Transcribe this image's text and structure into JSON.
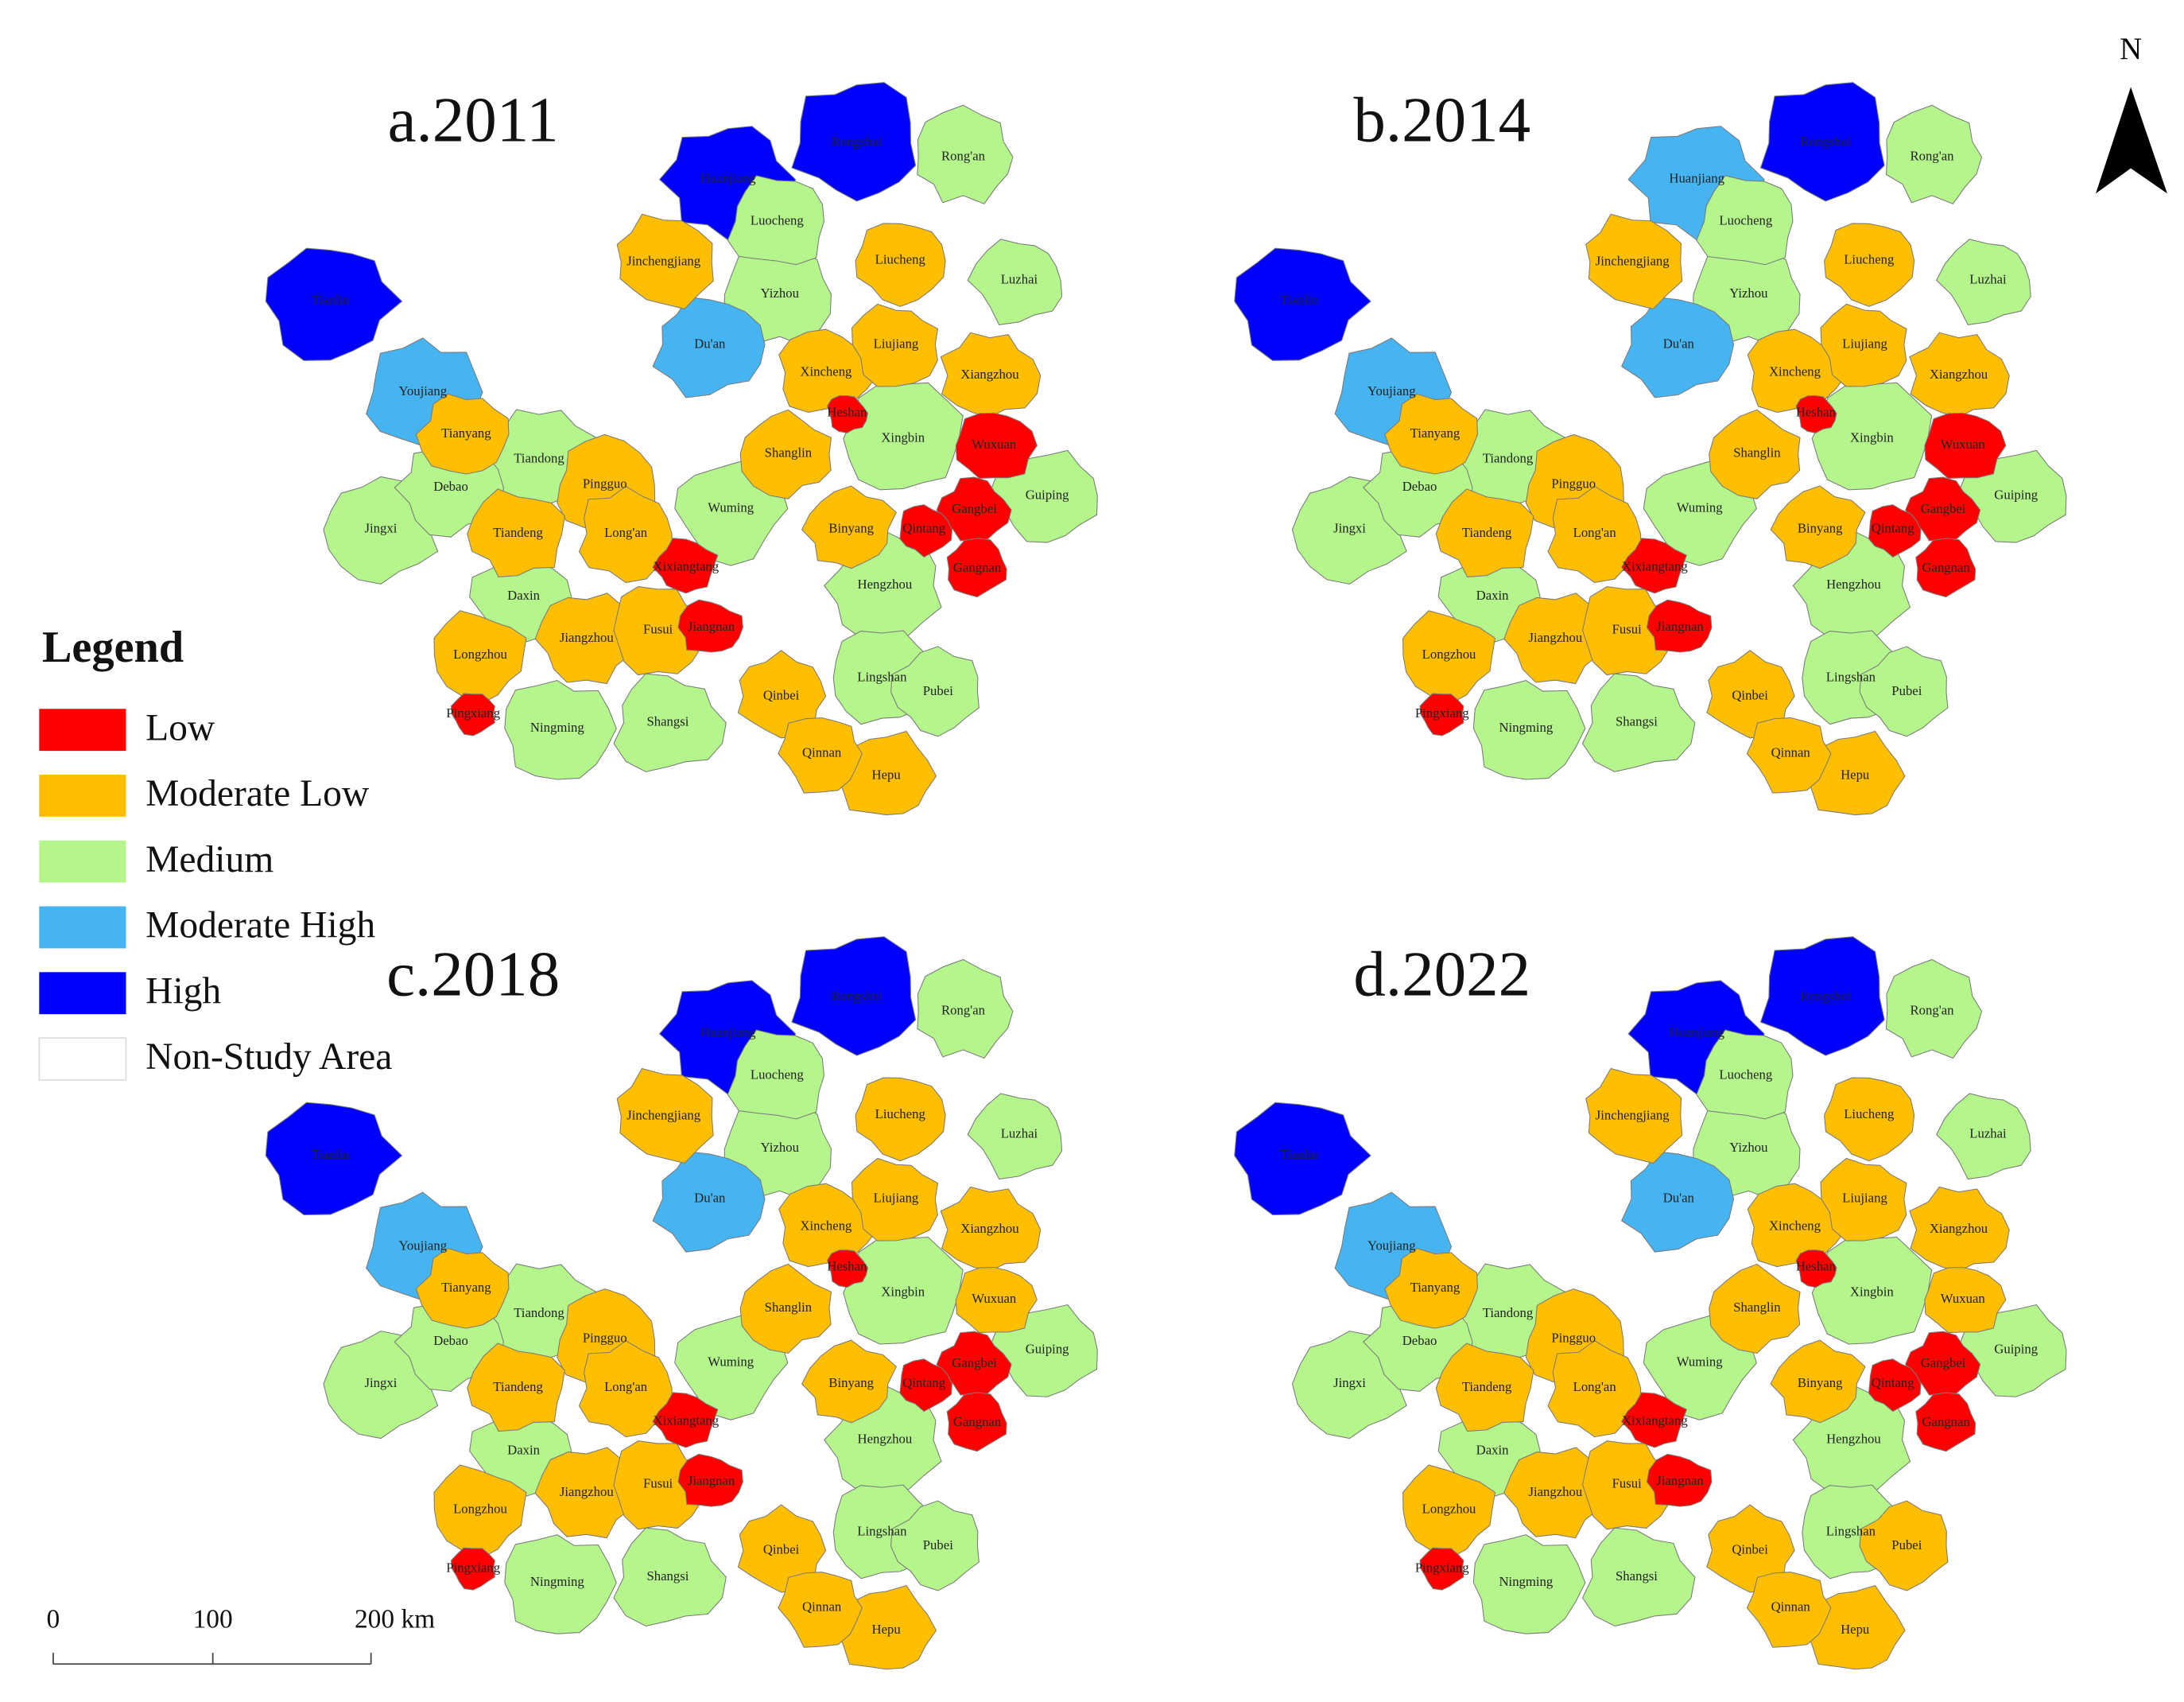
{
  "panels": [
    {
      "title": "a.2011"
    },
    {
      "title": "b.2014"
    },
    {
      "title": "c.2018"
    },
    {
      "title": "d.2022"
    }
  ],
  "legend": {
    "title": "Legend",
    "items": [
      {
        "label": "Low",
        "color": "#ff0000"
      },
      {
        "label": "Moderate Low",
        "color": "#ffbe00"
      },
      {
        "label": "Medium",
        "color": "#b4f58c"
      },
      {
        "label": "Moderate High",
        "color": "#46b4f0"
      },
      {
        "label": "High",
        "color": "#0000ff"
      },
      {
        "label": "Non-Study Area",
        "color": "#ffffff"
      }
    ]
  },
  "counties": [
    {
      "name": "Huanjiang",
      "classes": [
        "High",
        "Moderate High",
        "High",
        "High"
      ]
    },
    {
      "name": "Rongshui",
      "classes": [
        "High",
        "High",
        "High",
        "High"
      ]
    },
    {
      "name": "Rong'an",
      "classes": [
        "Medium",
        "Medium",
        "Medium",
        "Medium"
      ]
    },
    {
      "name": "Luocheng",
      "classes": [
        "Medium",
        "Medium",
        "Medium",
        "Medium"
      ]
    },
    {
      "name": "Jinchengjiang",
      "classes": [
        "Moderate Low",
        "Moderate Low",
        "Moderate Low",
        "Moderate Low"
      ]
    },
    {
      "name": "Liucheng",
      "classes": [
        "Moderate Low",
        "Moderate Low",
        "Moderate Low",
        "Moderate Low"
      ]
    },
    {
      "name": "Luzhai",
      "classes": [
        "Medium",
        "Medium",
        "Medium",
        "Medium"
      ]
    },
    {
      "name": "Yizhou",
      "classes": [
        "Medium",
        "Medium",
        "Medium",
        "Medium"
      ]
    },
    {
      "name": "Du'an",
      "classes": [
        "Moderate High",
        "Moderate High",
        "Moderate High",
        "Moderate High"
      ]
    },
    {
      "name": "Tianlin",
      "classes": [
        "High",
        "High",
        "High",
        "High"
      ]
    },
    {
      "name": "Youjiang",
      "classes": [
        "Moderate High",
        "Moderate High",
        "Moderate High",
        "Moderate High"
      ]
    },
    {
      "name": "Liujiang",
      "classes": [
        "Moderate Low",
        "Moderate Low",
        "Moderate Low",
        "Moderate Low"
      ]
    },
    {
      "name": "Xincheng",
      "classes": [
        "Moderate Low",
        "Moderate Low",
        "Moderate Low",
        "Moderate Low"
      ]
    },
    {
      "name": "Xiangzhou",
      "classes": [
        "Moderate Low",
        "Moderate Low",
        "Moderate Low",
        "Moderate Low"
      ]
    },
    {
      "name": "Xingbin",
      "classes": [
        "Medium",
        "Medium",
        "Medium",
        "Medium"
      ]
    },
    {
      "name": "Wuxuan",
      "classes": [
        "Low",
        "Low",
        "Moderate Low",
        "Moderate Low"
      ]
    },
    {
      "name": "Tianyang",
      "classes": [
        "Moderate Low",
        "Moderate Low",
        "Moderate Low",
        "Moderate Low"
      ]
    },
    {
      "name": "Tiandong",
      "classes": [
        "Medium",
        "Medium",
        "Medium",
        "Medium"
      ]
    },
    {
      "name": "Shanglin",
      "classes": [
        "Moderate Low",
        "Moderate Low",
        "Moderate Low",
        "Moderate Low"
      ]
    },
    {
      "name": "Debao",
      "classes": [
        "Medium",
        "Medium",
        "Medium",
        "Medium"
      ]
    },
    {
      "name": "Pingguo",
      "classes": [
        "Moderate Low",
        "Moderate Low",
        "Moderate Low",
        "Moderate Low"
      ]
    },
    {
      "name": "Wuming",
      "classes": [
        "Medium",
        "Medium",
        "Medium",
        "Medium"
      ]
    },
    {
      "name": "Guiping",
      "classes": [
        "Medium",
        "Medium",
        "Medium",
        "Medium"
      ]
    },
    {
      "name": "Jingxi",
      "classes": [
        "Medium",
        "Medium",
        "Medium",
        "Medium"
      ]
    },
    {
      "name": "Tiandeng",
      "classes": [
        "Moderate Low",
        "Moderate Low",
        "Moderate Low",
        "Moderate Low"
      ]
    },
    {
      "name": "Long'an",
      "classes": [
        "Moderate Low",
        "Moderate Low",
        "Moderate Low",
        "Moderate Low"
      ]
    },
    {
      "name": "Binyang",
      "classes": [
        "Moderate Low",
        "Moderate Low",
        "Moderate Low",
        "Moderate Low"
      ]
    },
    {
      "name": "Hengzhou",
      "classes": [
        "Medium",
        "Medium",
        "Medium",
        "Medium"
      ]
    },
    {
      "name": "Daxin",
      "classes": [
        "Medium",
        "Medium",
        "Medium",
        "Medium"
      ]
    },
    {
      "name": "Jiangzhou",
      "classes": [
        "Moderate Low",
        "Moderate Low",
        "Moderate Low",
        "Moderate Low"
      ]
    },
    {
      "name": "Fusui",
      "classes": [
        "Moderate Low",
        "Moderate Low",
        "Moderate Low",
        "Moderate Low"
      ]
    },
    {
      "name": "Longzhou",
      "classes": [
        "Moderate Low",
        "Moderate Low",
        "Moderate Low",
        "Moderate Low"
      ]
    },
    {
      "name": "Lingshan",
      "classes": [
        "Medium",
        "Medium",
        "Medium",
        "Medium"
      ]
    },
    {
      "name": "Pubei",
      "classes": [
        "Medium",
        "Medium",
        "Medium",
        "Moderate Low"
      ]
    },
    {
      "name": "Qinbei",
      "classes": [
        "Moderate Low",
        "Moderate Low",
        "Moderate Low",
        "Moderate Low"
      ]
    },
    {
      "name": "Ningming",
      "classes": [
        "Medium",
        "Medium",
        "Medium",
        "Medium"
      ]
    },
    {
      "name": "Shangsi",
      "classes": [
        "Medium",
        "Medium",
        "Medium",
        "Medium"
      ]
    },
    {
      "name": "Qinnan",
      "classes": [
        "Moderate Low",
        "Moderate Low",
        "Moderate Low",
        "Moderate Low"
      ]
    },
    {
      "name": "Hepu",
      "classes": [
        "Moderate Low",
        "Moderate Low",
        "Moderate Low",
        "Moderate Low"
      ]
    },
    {
      "name": "Qintang",
      "classes": [
        "Low",
        "Low",
        "Low",
        "Low"
      ]
    },
    {
      "name": "Gangbei",
      "classes": [
        "Low",
        "Low",
        "Low",
        "Low"
      ]
    },
    {
      "name": "Gangnan",
      "classes": [
        "Low",
        "Low",
        "Low",
        "Low"
      ]
    },
    {
      "name": "Xixiangtang",
      "classes": [
        "Low",
        "Low",
        "Low",
        "Low"
      ]
    },
    {
      "name": "Jiangnan",
      "classes": [
        "Low",
        "Low",
        "Low",
        "Low"
      ]
    },
    {
      "name": "Heshan",
      "classes": [
        "Low",
        "Low",
        "Low",
        "Low"
      ]
    },
    {
      "name": "Pingxiang",
      "classes": [
        "Low",
        "Low",
        "Low",
        "Low"
      ]
    }
  ],
  "scale_bar": {
    "labels": [
      "0",
      "100",
      "200 km"
    ]
  },
  "north": "N"
}
